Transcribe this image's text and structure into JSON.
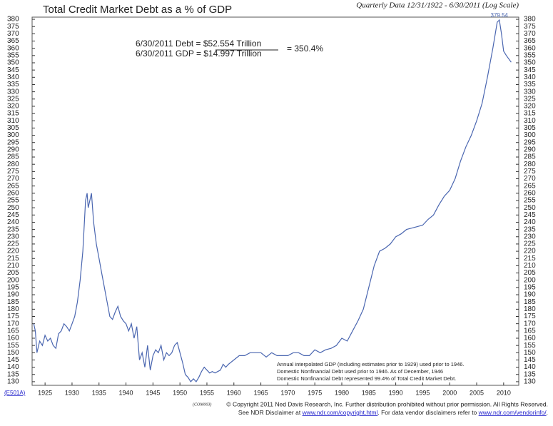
{
  "chart_data": {
    "type": "line",
    "title": "Total Credit Market Debt as a % of GDP",
    "subtitle": "Quarterly Data 12/31/1922 - 6/30/2011 (Log Scale)",
    "x": [
      1922.9,
      1923.2,
      1923.5,
      1924,
      1924.5,
      1925,
      1925.5,
      1926,
      1926.5,
      1927,
      1927.5,
      1928,
      1928.5,
      1929,
      1929.5,
      1930,
      1930.5,
      1931,
      1931.5,
      1932,
      1932.5,
      1932.8,
      1933,
      1933.3,
      1933.6,
      1934,
      1934.5,
      1935,
      1935.5,
      1936,
      1936.5,
      1937,
      1937.5,
      1938,
      1938.5,
      1939,
      1939.5,
      1940,
      1940.5,
      1941,
      1941.5,
      1942,
      1942.5,
      1943,
      1943.5,
      1944,
      1944.5,
      1945,
      1945.5,
      1946,
      1946.5,
      1947,
      1947.5,
      1948,
      1948.5,
      1949,
      1949.5,
      1950,
      1950.5,
      1951,
      1951.5,
      1952,
      1952.5,
      1953,
      1953.5,
      1954,
      1954.5,
      1955,
      1955.5,
      1956,
      1956.5,
      1957,
      1957.5,
      1958,
      1958.5,
      1959,
      1960,
      1961,
      1962,
      1963,
      1964,
      1965,
      1966,
      1967,
      1968,
      1969,
      1970,
      1971,
      1972,
      1973,
      1974,
      1975,
      1976,
      1977,
      1978,
      1979,
      1980,
      1981,
      1982,
      1983,
      1984,
      1985,
      1986,
      1987,
      1988,
      1989,
      1990,
      1991,
      1992,
      1993,
      1994,
      1995,
      1996,
      1997,
      1998,
      1999,
      2000,
      2001,
      2002,
      2003,
      2004,
      2005,
      2006,
      2007,
      2008,
      2008.8,
      2009.2,
      2009.6,
      2010,
      2010.5,
      2011.4
    ],
    "values": [
      170,
      165,
      150,
      158,
      155,
      162,
      158,
      160,
      155,
      153,
      163,
      165,
      170,
      168,
      165,
      170,
      175,
      185,
      200,
      220,
      255,
      260,
      250,
      255,
      260,
      240,
      225,
      215,
      205,
      195,
      185,
      175,
      173,
      178,
      182,
      175,
      172,
      170,
      165,
      170,
      160,
      168,
      145,
      150,
      140,
      155,
      138,
      148,
      152,
      150,
      155,
      145,
      150,
      148,
      150,
      155,
      157,
      150,
      143,
      135,
      133,
      130,
      132,
      130,
      133,
      137,
      140,
      138,
      136,
      137,
      136,
      137,
      138,
      142,
      140,
      142,
      145,
      148,
      148,
      150,
      150,
      150,
      147,
      150,
      148,
      148,
      148,
      150,
      150,
      148,
      148,
      152,
      150,
      152,
      153,
      155,
      160,
      158,
      165,
      172,
      180,
      195,
      210,
      220,
      222,
      225,
      230,
      232,
      235,
      236,
      237,
      238,
      242,
      245,
      252,
      258,
      262,
      270,
      282,
      292,
      300,
      310,
      322,
      340,
      360,
      378,
      379.54,
      370,
      358,
      355,
      350.4
    ],
    "color": "#4a66b0",
    "xlim": [
      1922.6,
      2012.8
    ],
    "xticks": [
      1925,
      1930,
      1935,
      1940,
      1945,
      1950,
      1955,
      1960,
      1965,
      1970,
      1975,
      1980,
      1985,
      1990,
      1995,
      2000,
      2005,
      2010
    ],
    "ylim": [
      127.5,
      381.5
    ],
    "yticks": [
      130,
      135,
      140,
      145,
      150,
      155,
      160,
      165,
      170,
      175,
      180,
      185,
      190,
      195,
      200,
      205,
      210,
      215,
      220,
      225,
      230,
      235,
      240,
      245,
      250,
      255,
      260,
      265,
      270,
      275,
      280,
      285,
      290,
      295,
      300,
      305,
      310,
      315,
      320,
      325,
      330,
      335,
      340,
      345,
      350,
      355,
      360,
      365,
      370,
      375,
      380
    ],
    "log_scale": false,
    "peak_annotation": {
      "x": 2009.2,
      "y": 379.54,
      "label": "379.54"
    },
    "annotation": {
      "debt_line": "6/30/2011  Debt  =  $52.554 Trillion",
      "gdp_line": "6/30/2011  GDP  =  $14.997 Trillion",
      "ratio": "=  350.4%"
    },
    "notes": [
      "Annual interpolated GDP (including estimates prior to 1929) used prior to 1946.",
      "Domestic Nonfinancial Debt used prior to 1946. As of December, 1946",
      "Domestic Nonfinancial Debt represented 99.4% of Total Credit Market Debt."
    ],
    "chart_code": "(E501A)",
    "footer": {
      "code": "(COM003)",
      "line1": "© Copyright 2011 Ned Davis Research, Inc.  Further distribution prohibited without prior permission.  All Rights Reserved.",
      "line2a": "See NDR Disclaimer at ",
      "link1": "www.ndr.com/copyright.html",
      "line2b": ". For data vendor disclaimers refer to ",
      "link2": "www.ndr.com/vendorinfo/",
      "line2c": "."
    }
  }
}
